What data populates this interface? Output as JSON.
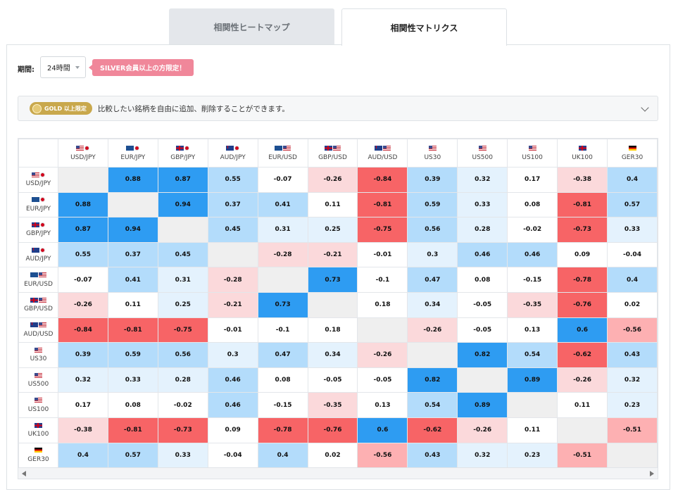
{
  "tabs": [
    {
      "label": "相関性ヒートマップ",
      "active": false
    },
    {
      "label": "相関性マトリクス",
      "active": true
    }
  ],
  "period": {
    "label": "期間:",
    "value": "24時間"
  },
  "silver_notice": "SILVER会員以上の方限定！",
  "info_bar": {
    "badge": "GOLD 以上限定",
    "text": "比較したい銘柄を自由に追加、削除することができます。"
  },
  "colors": {
    "strong_positive": "#2e9cf2",
    "positive": "#b3dcfb",
    "weak_positive": "#e4f2fd",
    "neutral": "#ffffff",
    "weak_negative": "#fbd9db",
    "negative": "#fdb0b2",
    "strong_negative": "#f76466",
    "diagonal": "#efefef"
  },
  "matrix": {
    "symbols": [
      {
        "label": "USD/JPY",
        "flags": [
          "us",
          "jp"
        ]
      },
      {
        "label": "EUR/JPY",
        "flags": [
          "eu",
          "jp"
        ]
      },
      {
        "label": "GBP/JPY",
        "flags": [
          "gb",
          "jp"
        ]
      },
      {
        "label": "AUD/JPY",
        "flags": [
          "au",
          "jp"
        ]
      },
      {
        "label": "EUR/USD",
        "flags": [
          "eu",
          "us"
        ]
      },
      {
        "label": "GBP/USD",
        "flags": [
          "gb",
          "us"
        ]
      },
      {
        "label": "AUD/USD",
        "flags": [
          "au",
          "us"
        ]
      },
      {
        "label": "US30",
        "flags": [
          "us"
        ]
      },
      {
        "label": "US500",
        "flags": [
          "us"
        ]
      },
      {
        "label": "US100",
        "flags": [
          "us"
        ]
      },
      {
        "label": "UK100",
        "flags": [
          "gb"
        ]
      },
      {
        "label": "GER30",
        "flags": [
          "de"
        ]
      }
    ],
    "values": [
      [
        null,
        "0.88",
        "0.87",
        "0.55",
        "-0.07",
        "-0.26",
        "-0.84",
        "0.39",
        "0.32",
        "0.17",
        "-0.38",
        "0.4"
      ],
      [
        "0.88",
        null,
        "0.94",
        "0.37",
        "0.41",
        "0.11",
        "-0.81",
        "0.59",
        "0.33",
        "0.08",
        "-0.81",
        "0.57"
      ],
      [
        "0.87",
        "0.94",
        null,
        "0.45",
        "0.31",
        "0.25",
        "-0.75",
        "0.56",
        "0.28",
        "-0.02",
        "-0.73",
        "0.33"
      ],
      [
        "0.55",
        "0.37",
        "0.45",
        null,
        "-0.28",
        "-0.21",
        "-0.01",
        "0.3",
        "0.46",
        "0.46",
        "0.09",
        "-0.04"
      ],
      [
        "-0.07",
        "0.41",
        "0.31",
        "-0.28",
        null,
        "0.73",
        "-0.1",
        "0.47",
        "0.08",
        "-0.15",
        "-0.78",
        "0.4"
      ],
      [
        "-0.26",
        "0.11",
        "0.25",
        "-0.21",
        "0.73",
        null,
        "0.18",
        "0.34",
        "-0.05",
        "-0.35",
        "-0.76",
        "0.02"
      ],
      [
        "-0.84",
        "-0.81",
        "-0.75",
        "-0.01",
        "-0.1",
        "0.18",
        null,
        "-0.26",
        "-0.05",
        "0.13",
        "0.6",
        "-0.56"
      ],
      [
        "0.39",
        "0.59",
        "0.56",
        "0.3",
        "0.47",
        "0.34",
        "-0.26",
        null,
        "0.82",
        "0.54",
        "-0.62",
        "0.43"
      ],
      [
        "0.32",
        "0.33",
        "0.28",
        "0.46",
        "0.08",
        "-0.05",
        "-0.05",
        "0.82",
        null,
        "0.89",
        "-0.26",
        "0.32"
      ],
      [
        "0.17",
        "0.08",
        "-0.02",
        "0.46",
        "-0.15",
        "-0.35",
        "0.13",
        "0.54",
        "0.89",
        null,
        "0.11",
        "0.23"
      ],
      [
        "-0.38",
        "-0.81",
        "-0.73",
        "0.09",
        "-0.78",
        "-0.76",
        "0.6",
        "-0.62",
        "-0.26",
        "0.11",
        null,
        "-0.51"
      ],
      [
        "0.4",
        "0.57",
        "0.33",
        "-0.04",
        "0.4",
        "0.02",
        "-0.56",
        "0.43",
        "0.32",
        "0.23",
        "-0.51",
        null
      ]
    ]
  }
}
